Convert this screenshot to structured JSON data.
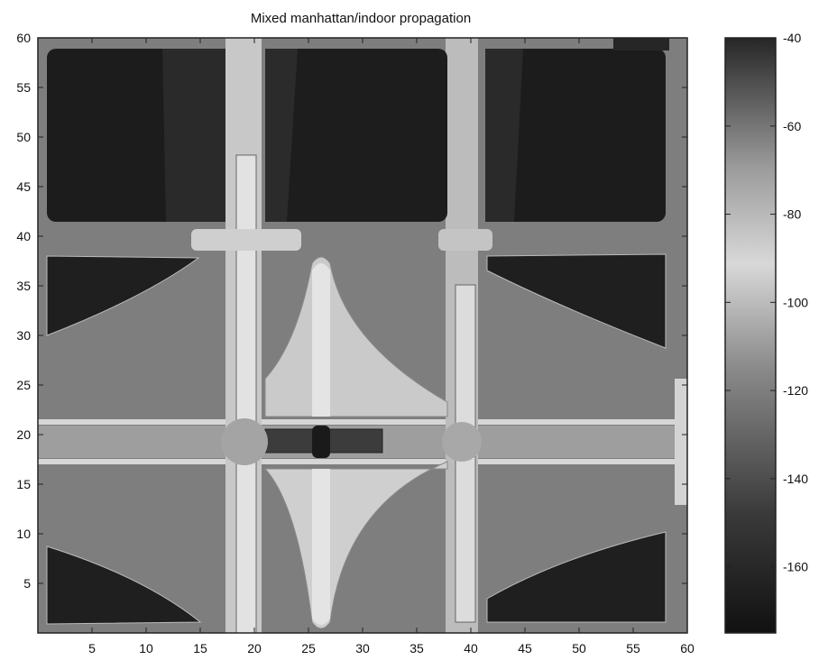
{
  "chart_data": {
    "type": "heatmap",
    "title": "Mixed manhattan/indoor propagation",
    "xlabel": "",
    "ylabel": "",
    "xlim": [
      0,
      60
    ],
    "ylim": [
      0,
      60
    ],
    "x_ticks": [
      "5",
      "10",
      "15",
      "20",
      "25",
      "30",
      "35",
      "40",
      "45",
      "50",
      "55",
      "60"
    ],
    "y_ticks": [
      "5",
      "10",
      "15",
      "20",
      "25",
      "30",
      "35",
      "40",
      "45",
      "50",
      "55",
      "60"
    ],
    "colorbar": {
      "range": [
        -175,
        -40
      ],
      "ticks": [
        "-40",
        "-60",
        "-80",
        "-100",
        "-120",
        "-140",
        "-160"
      ],
      "colormap": "gray"
    },
    "colors": {
      "very_low": "#1e1e1e",
      "low": "#2e2e2e",
      "medium": "#7a7a7a",
      "medium_light": "#9a9a9a",
      "high": "#c6c6c6",
      "very_high": "#d8d8d8",
      "hot_spot": "#3a3a3a"
    }
  }
}
